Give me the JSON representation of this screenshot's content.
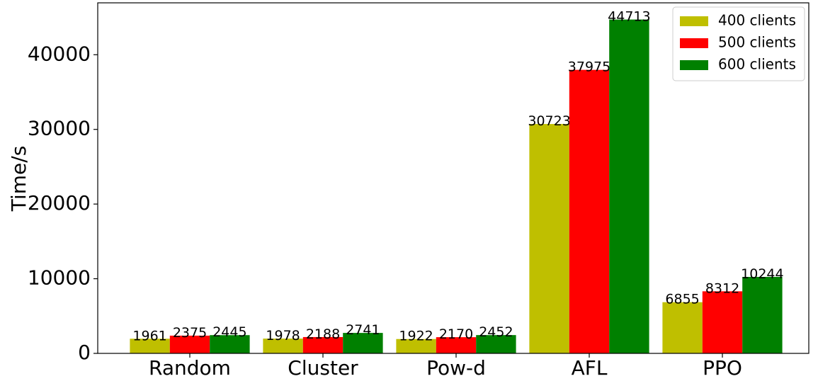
{
  "chart_data": {
    "type": "bar",
    "ylabel": "Time/s",
    "categories": [
      "Random",
      "Cluster",
      "Pow-d",
      "AFL",
      "PPO"
    ],
    "series": [
      {
        "name": "400 clients",
        "color": "#bfbf00",
        "values": [
          1961,
          1978,
          1922,
          30723,
          6855
        ]
      },
      {
        "name": "500 clients",
        "color": "#ff0000",
        "values": [
          2375,
          2188,
          2170,
          37975,
          8312
        ]
      },
      {
        "name": "600 clients",
        "color": "#008000",
        "values": [
          2445,
          2741,
          2452,
          44713,
          10244
        ]
      }
    ],
    "ylim": [
      0,
      46950
    ],
    "yticks": [
      0,
      10000,
      20000,
      30000,
      40000
    ],
    "legend": "upper right"
  }
}
